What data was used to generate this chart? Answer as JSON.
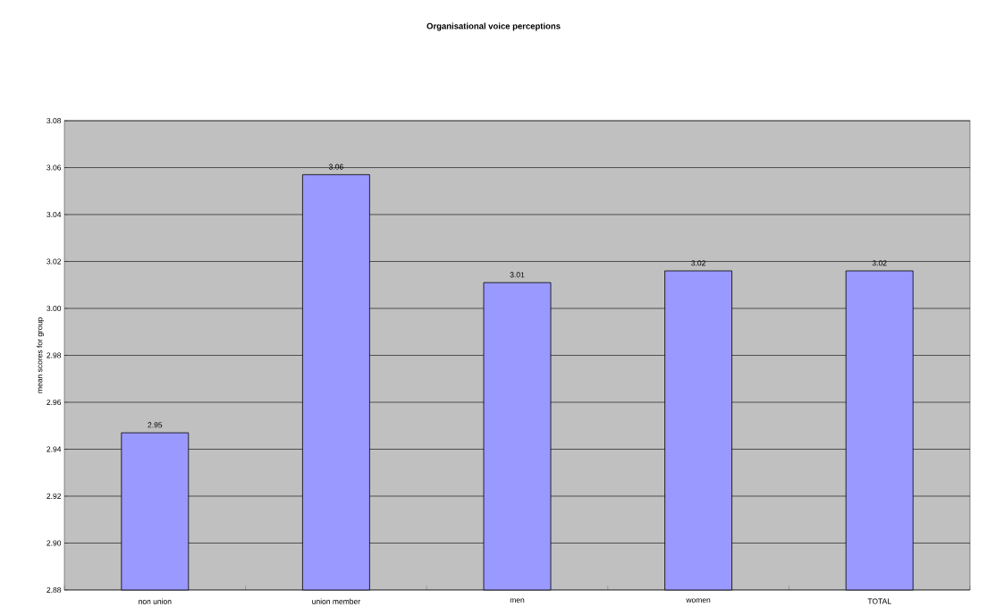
{
  "chart_data": {
    "type": "bar",
    "title": "Organisational voice perceptions",
    "ylabel": "mean scores for group",
    "categories": [
      "non union",
      "union member",
      "men",
      "women",
      "TOTAL"
    ],
    "values": [
      2.947,
      3.057,
      3.011,
      3.016,
      3.016
    ],
    "value_labels": [
      "2.95",
      "3.06",
      "3.01",
      "3.02",
      "3.02"
    ],
    "color": "#9999ff",
    "ylim": [
      2.88,
      3.08
    ],
    "yticks": [
      {
        "value": 2.88,
        "label": "2.88"
      },
      {
        "value": 2.9,
        "label": "2.90"
      },
      {
        "value": 2.92,
        "label": "2.92"
      },
      {
        "value": 2.94,
        "label": "2.94"
      },
      {
        "value": 2.96,
        "label": "2.96"
      },
      {
        "value": 2.98,
        "label": "2.98"
      },
      {
        "value": 3.0,
        "label": "3.00"
      },
      {
        "value": 3.02,
        "label": "3.02"
      },
      {
        "value": 3.04,
        "label": "3.04"
      },
      {
        "value": 3.06,
        "label": "3.06"
      },
      {
        "value": 3.08,
        "label": "3.08"
      }
    ],
    "grid": "y"
  }
}
